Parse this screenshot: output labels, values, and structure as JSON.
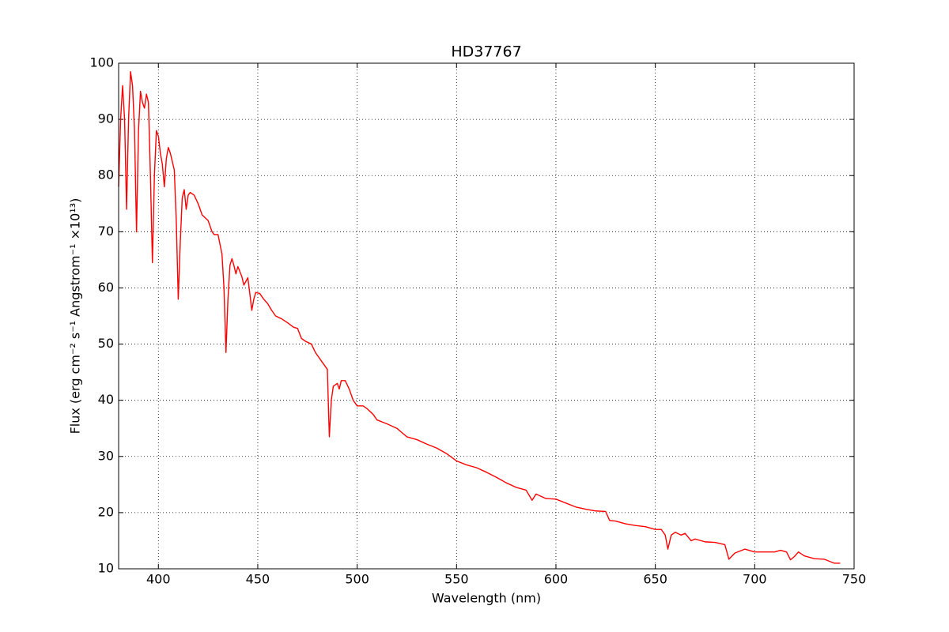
{
  "chart_data": {
    "type": "line",
    "title": "HD37767",
    "x_label": "Wavelength (nm)",
    "y_label": "Flux  (erg cm⁻² s⁻¹ Angstrom⁻¹ ×10¹³)",
    "x": [
      380,
      381,
      382,
      383,
      384,
      385,
      386,
      387,
      388,
      389,
      390,
      391,
      392,
      393,
      394,
      395,
      396,
      397,
      398,
      399,
      400,
      401,
      402,
      403,
      404,
      405,
      406,
      407,
      408,
      409,
      410,
      411,
      412,
      413,
      414,
      415,
      416,
      418,
      420,
      422,
      425,
      427,
      428,
      430,
      432,
      433,
      434,
      435,
      436,
      437,
      438,
      439,
      440,
      442,
      443,
      445,
      446,
      447,
      448,
      449,
      451,
      453,
      455,
      457,
      459,
      462,
      465,
      468,
      470,
      472,
      474,
      477,
      479,
      481,
      483,
      485,
      486,
      487,
      488,
      490,
      491,
      492,
      494,
      496,
      498,
      500,
      503,
      505,
      508,
      510,
      515,
      520,
      525,
      530,
      535,
      540,
      545,
      550,
      555,
      560,
      565,
      570,
      575,
      580,
      585,
      588,
      590,
      595,
      600,
      605,
      610,
      615,
      620,
      625,
      627,
      630,
      635,
      640,
      645,
      650,
      653,
      655,
      656.3,
      658,
      660,
      663,
      665,
      668,
      670,
      675,
      680,
      685,
      687,
      690,
      695,
      700,
      705,
      710,
      713,
      716,
      718,
      720,
      722,
      725,
      730,
      735,
      740,
      743
    ],
    "series": [
      {
        "name": "HD37767",
        "color": "#ff0000",
        "values": [
          78,
          90,
          96,
          90,
          74,
          90,
          98.5,
          96,
          88,
          70,
          88,
          95,
          93,
          92,
          94.5,
          93,
          80,
          64.5,
          80,
          88,
          87,
          84,
          82,
          78,
          83,
          85,
          84,
          82.5,
          81,
          72,
          58,
          68,
          76,
          77.5,
          74,
          76.5,
          77,
          76.5,
          75,
          73,
          72,
          70,
          69.5,
          69.5,
          66,
          60,
          48.5,
          58,
          64,
          65.2,
          64,
          62.5,
          63.8,
          62,
          60.5,
          61.8,
          59,
          56,
          58,
          59.2,
          59,
          58,
          57.2,
          56,
          55,
          54.5,
          53.8,
          53,
          52.8,
          51,
          50.5,
          50,
          48.5,
          47.5,
          46.5,
          45.5,
          33.5,
          40,
          42.5,
          43,
          42,
          43.5,
          43.5,
          42,
          40,
          39,
          39,
          38.5,
          37.5,
          36.5,
          35.8,
          35,
          33.5,
          33,
          32.2,
          31.5,
          30.5,
          29.2,
          28.5,
          28,
          27.2,
          26.3,
          25.3,
          24.5,
          24,
          22.2,
          23.3,
          22.5,
          22.4,
          21.7,
          21,
          20.6,
          20.3,
          20.2,
          18.6,
          18.5,
          18,
          17.7,
          17.5,
          17,
          17,
          16,
          13.5,
          16,
          16.5,
          16,
          16.3,
          15,
          15.3,
          14.8,
          14.7,
          14.3,
          11.7,
          12.8,
          13.5,
          13,
          13,
          13,
          13.3,
          13,
          11.6,
          12.2,
          13,
          12.3,
          11.8,
          11.7,
          11,
          11
        ]
      }
    ],
    "xlim": [
      380,
      750
    ],
    "xticks": [
      400,
      450,
      500,
      550,
      600,
      650,
      700,
      750
    ],
    "ylim": [
      10,
      100
    ],
    "yticks": [
      10,
      20,
      30,
      40,
      50,
      60,
      70,
      80,
      90,
      100
    ],
    "grid": true
  }
}
